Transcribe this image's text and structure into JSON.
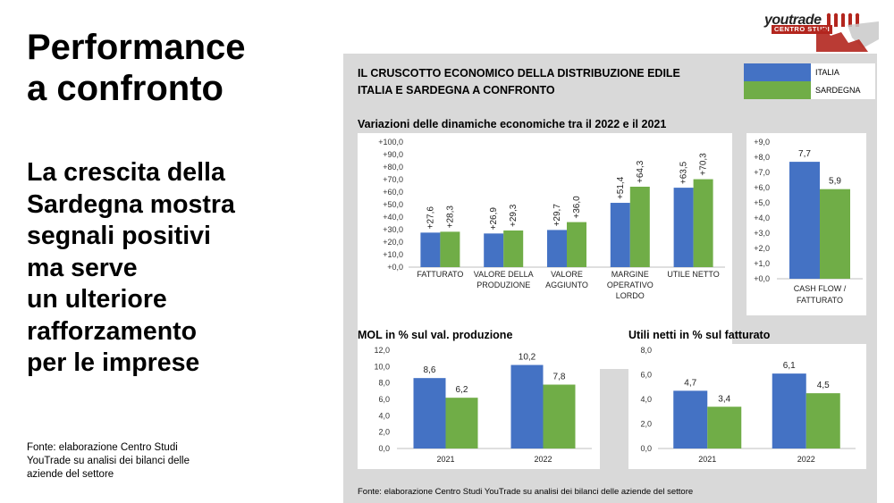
{
  "slide": {
    "title": "Performance\na confronto",
    "subtitle": "La crescita della\nSardegna mostra\nsegnali positivi\nma serve\nun ulteriore\nrafforzamento\nper le imprese",
    "source": "Fonte: elaborazione Centro Studi\nYouTrade su analisi dei bilanci delle\naziende del settore"
  },
  "logo": {
    "name": "youtrade",
    "tagline": "CENTRO STUDI"
  },
  "panel": {
    "header_line1": "IL CRUSCOTTO ECONOMICO DELLA DISTRIBUZIONE EDILE",
    "header_line2": "ITALIA E SARDEGNA A CONFRONTO",
    "source": "Fonte: elaborazione Centro Studi YouTrade su analisi dei bilanci delle aziende del settore"
  },
  "legend": {
    "italia": "ITALIA",
    "sardegna": "SARDEGNA"
  },
  "colors": {
    "italia": "#4472c4",
    "sardegna": "#70ad47",
    "panel": "#d9d9d9"
  },
  "chart_data": [
    {
      "id": "variazioni",
      "type": "bar",
      "title": "Variazioni delle dinamiche economiche tra il 2022 e il 2021",
      "categories": [
        [
          "FATTURATO"
        ],
        [
          "VALORE DELLA",
          "PRODUZIONE"
        ],
        [
          "VALORE",
          "AGGIUNTO"
        ],
        [
          "MARGINE",
          "OPERATIVO",
          "LORDO"
        ],
        [
          "UTILE NETTO"
        ]
      ],
      "series": [
        {
          "name": "ITALIA",
          "values": [
            27.6,
            26.9,
            29.7,
            51.4,
            63.5
          ]
        },
        {
          "name": "SARDEGNA",
          "values": [
            28.3,
            29.3,
            36.0,
            64.3,
            70.3
          ]
        }
      ],
      "data_labels": [
        [
          "+27,6",
          "+26,9",
          "+29,7",
          "+51,4",
          "+63,5"
        ],
        [
          "+28,3",
          "+29,3",
          "+36,0",
          "+64,3",
          "+70,3"
        ]
      ],
      "ylim": [
        0,
        100
      ],
      "yticks": [
        "+0,0",
        "+10,0",
        "+20,0",
        "+30,0",
        "+40,0",
        "+50,0",
        "+60,0",
        "+70,0",
        "+80,0",
        "+90,0",
        "+100,0"
      ],
      "label_orientation": "vertical"
    },
    {
      "id": "cashflow",
      "type": "bar",
      "title": "",
      "categories": [
        [
          "CASH FLOW /",
          "FATTURATO"
        ]
      ],
      "series": [
        {
          "name": "ITALIA",
          "values": [
            7.7
          ]
        },
        {
          "name": "SARDEGNA",
          "values": [
            5.9
          ]
        }
      ],
      "data_labels": [
        [
          "7,7"
        ],
        [
          "5,9"
        ]
      ],
      "ylim": [
        0,
        9
      ],
      "yticks": [
        "+0,0",
        "+1,0",
        "+2,0",
        "+3,0",
        "+4,0",
        "+5,0",
        "+6,0",
        "+7,0",
        "+8,0",
        "+9,0"
      ],
      "label_orientation": "horizontal"
    },
    {
      "id": "mol",
      "type": "bar",
      "title": "MOL in % sul val. produzione",
      "categories": [
        [
          "2021"
        ],
        [
          "2022"
        ]
      ],
      "series": [
        {
          "name": "ITALIA",
          "values": [
            8.6,
            10.2
          ]
        },
        {
          "name": "SARDEGNA",
          "values": [
            6.2,
            7.8
          ]
        }
      ],
      "data_labels": [
        [
          "8,6",
          "10,2"
        ],
        [
          "6,2",
          "7,8"
        ]
      ],
      "ylim": [
        0,
        12
      ],
      "yticks": [
        "0,0",
        "2,0",
        "4,0",
        "6,0",
        "8,0",
        "10,0",
        "12,0"
      ],
      "label_orientation": "horizontal"
    },
    {
      "id": "utili",
      "type": "bar",
      "title": "Utili netti in % sul fatturato",
      "categories": [
        [
          "2021"
        ],
        [
          "2022"
        ]
      ],
      "series": [
        {
          "name": "ITALIA",
          "values": [
            4.7,
            6.1
          ]
        },
        {
          "name": "SARDEGNA",
          "values": [
            3.4,
            4.5
          ]
        }
      ],
      "data_labels": [
        [
          "4,7",
          "6,1"
        ],
        [
          "3,4",
          "4,5"
        ]
      ],
      "ylim": [
        0,
        8
      ],
      "yticks": [
        "0,0",
        "2,0",
        "4,0",
        "6,0",
        "8,0"
      ],
      "label_orientation": "horizontal"
    }
  ]
}
